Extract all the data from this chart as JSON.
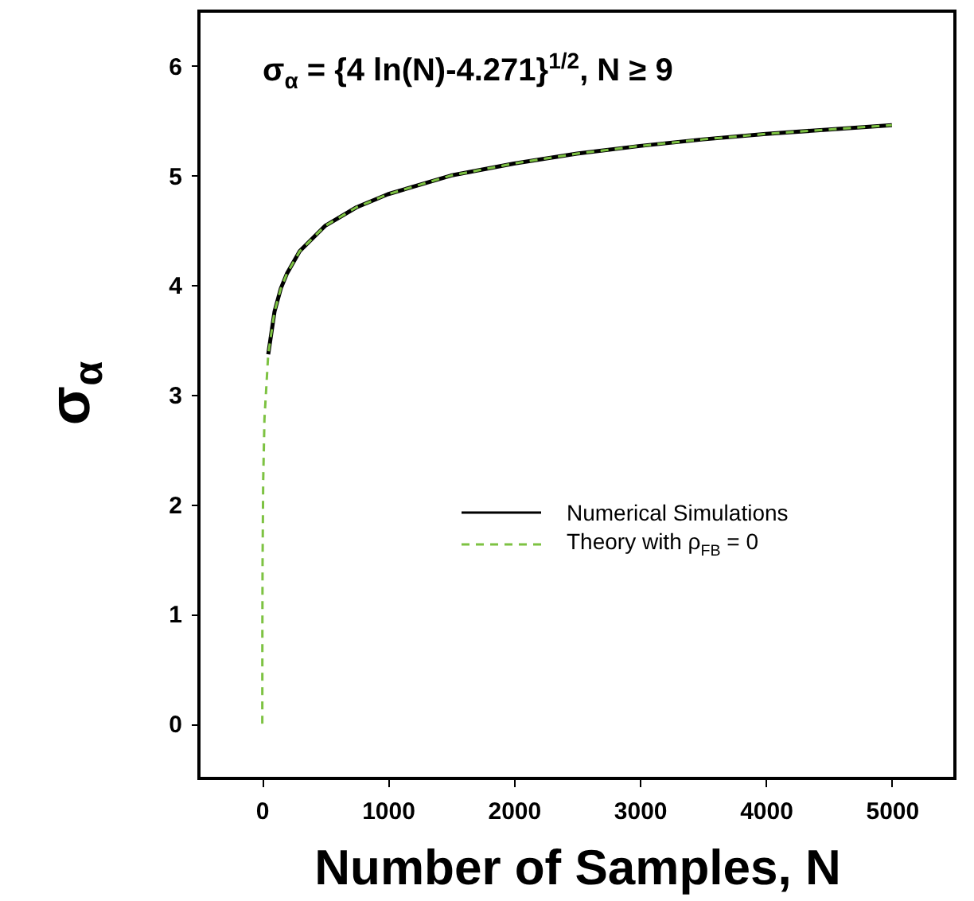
{
  "chart_data": {
    "type": "line",
    "xlabel": "Number of Samples, N",
    "ylabel": "σ$_{α}$",
    "annotations": [
      "σ$_{α}$ = {4 ln(N)-4.271}$^{1/2}$, N ≥ 9"
    ],
    "xlim": [
      -500,
      5500
    ],
    "xticks": [
      0,
      1000,
      2000,
      3000,
      4000,
      5000
    ],
    "ylim": [
      -0.5,
      6.5
    ],
    "yticks": [
      0,
      1,
      2,
      3,
      4,
      5,
      6
    ],
    "grid": false,
    "legend": "right",
    "marker": "none",
    "series": [
      {
        "name": "Numerical Simulations",
        "color": "#000000",
        "line_style": "solid",
        "x": [
          50,
          100,
          150,
          200,
          300,
          500,
          750,
          1000,
          1500,
          2000,
          2500,
          3000,
          3500,
          4000,
          4500,
          5000
        ],
        "values": [
          3.37,
          3.76,
          3.97,
          4.11,
          4.31,
          4.54,
          4.71,
          4.83,
          5.0,
          5.11,
          5.2,
          5.27,
          5.33,
          5.38,
          5.42,
          5.46
        ]
      },
      {
        "name": "Theory with ρ$_{FB}$ = 0",
        "color": "#7dc242",
        "line_style": "dashed",
        "x": [
          2.9,
          3.5,
          5,
          10,
          20,
          50,
          100,
          150,
          200,
          300,
          500,
          750,
          1000,
          1500,
          2000,
          2500,
          3000,
          3500,
          4000,
          4500,
          5000
        ],
        "values": [
          0,
          0.86,
          1.47,
          2.22,
          2.78,
          3.37,
          3.76,
          3.97,
          4.11,
          4.31,
          4.54,
          4.71,
          4.83,
          5.0,
          5.11,
          5.2,
          5.27,
          5.33,
          5.38,
          5.42,
          5.46
        ]
      }
    ]
  }
}
